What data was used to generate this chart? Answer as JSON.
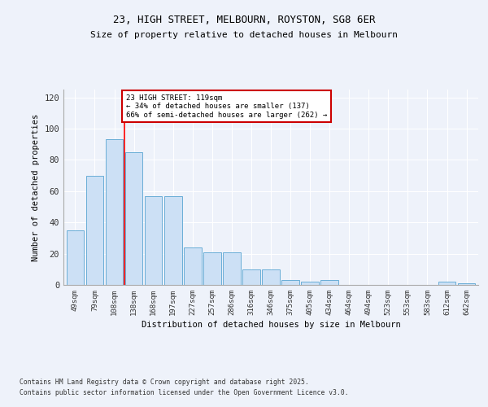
{
  "title1": "23, HIGH STREET, MELBOURN, ROYSTON, SG8 6ER",
  "title2": "Size of property relative to detached houses in Melbourn",
  "xlabel": "Distribution of detached houses by size in Melbourn",
  "ylabel": "Number of detached properties",
  "categories": [
    "49sqm",
    "79sqm",
    "108sqm",
    "138sqm",
    "168sqm",
    "197sqm",
    "227sqm",
    "257sqm",
    "286sqm",
    "316sqm",
    "346sqm",
    "375sqm",
    "405sqm",
    "434sqm",
    "464sqm",
    "494sqm",
    "523sqm",
    "553sqm",
    "583sqm",
    "612sqm",
    "642sqm"
  ],
  "values": [
    35,
    70,
    93,
    85,
    57,
    57,
    24,
    21,
    21,
    10,
    10,
    3,
    2,
    3,
    0,
    0,
    0,
    0,
    0,
    2,
    1
  ],
  "bar_color": "#cce0f5",
  "bar_edge_color": "#6aaed6",
  "annotation_text": "23 HIGH STREET: 119sqm\n← 34% of detached houses are smaller (137)\n66% of semi-detached houses are larger (262) →",
  "annotation_box_color": "#ffffff",
  "annotation_box_edge": "#cc0000",
  "ylim": [
    0,
    125
  ],
  "yticks": [
    0,
    20,
    40,
    60,
    80,
    100,
    120
  ],
  "footer1": "Contains HM Land Registry data © Crown copyright and database right 2025.",
  "footer2": "Contains public sector information licensed under the Open Government Licence v3.0.",
  "background_color": "#eef2fa",
  "grid_color": "#ffffff"
}
